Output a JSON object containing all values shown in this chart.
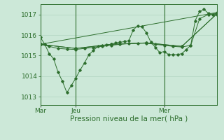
{
  "bg_color": "#cce8d8",
  "line_color": "#2d6e2d",
  "grid_color": "#aacfba",
  "axis_color": "#2d6e2d",
  "xlabel": "Pression niveau de la mer( hPa )",
  "xlabel_fontsize": 7.5,
  "tick_fontsize": 6.5,
  "ylim": [
    1012.6,
    1017.5
  ],
  "yticks": [
    1013,
    1014,
    1015,
    1016,
    1017
  ],
  "xtick_labels": [
    "Mar",
    "Jeu",
    "Mer"
  ],
  "xtick_positions": [
    0,
    48,
    168
  ],
  "total_hours": 240,
  "series": [
    [
      0,
      1015.9,
      6,
      1015.55,
      12,
      1015.1,
      18,
      1014.85,
      24,
      1014.2,
      30,
      1013.75,
      36,
      1013.2,
      42,
      1013.55,
      48,
      1013.9,
      54,
      1014.3,
      60,
      1014.65,
      66,
      1015.05,
      72,
      1015.25,
      78,
      1015.45,
      84,
      1015.5,
      90,
      1015.52,
      96,
      1015.55,
      102,
      1015.62,
      108,
      1015.65,
      114,
      1015.68,
      120,
      1015.72,
      126,
      1016.25,
      132,
      1016.45,
      138,
      1016.4,
      144,
      1016.1,
      150,
      1015.65,
      156,
      1015.4,
      162,
      1015.15,
      168,
      1015.2,
      174,
      1015.05,
      180,
      1015.05,
      186,
      1015.05,
      192,
      1015.1,
      198,
      1015.3,
      204,
      1015.5,
      210,
      1016.7,
      216,
      1017.15,
      222,
      1017.25,
      228,
      1017.05,
      234,
      1017.0,
      240,
      1017.0
    ],
    [
      0,
      1015.55,
      12,
      1015.45,
      24,
      1015.35,
      36,
      1015.32,
      48,
      1015.3,
      60,
      1015.35,
      72,
      1015.4,
      84,
      1015.45,
      96,
      1015.5,
      108,
      1015.55,
      120,
      1015.58,
      132,
      1015.6,
      144,
      1015.6,
      156,
      1015.55,
      168,
      1015.5,
      180,
      1015.45,
      192,
      1015.42,
      204,
      1015.5,
      216,
      1016.8,
      228,
      1017.0,
      240,
      1017.05
    ],
    [
      0,
      1015.55,
      48,
      1015.35,
      96,
      1015.55,
      144,
      1015.62,
      192,
      1015.45,
      240,
      1017.05
    ],
    [
      0,
      1015.55,
      240,
      1017.1
    ],
    [
      0,
      1015.55,
      48,
      1015.35,
      96,
      1015.55,
      144,
      1015.62,
      192,
      1015.45,
      240,
      1017.05
    ]
  ]
}
